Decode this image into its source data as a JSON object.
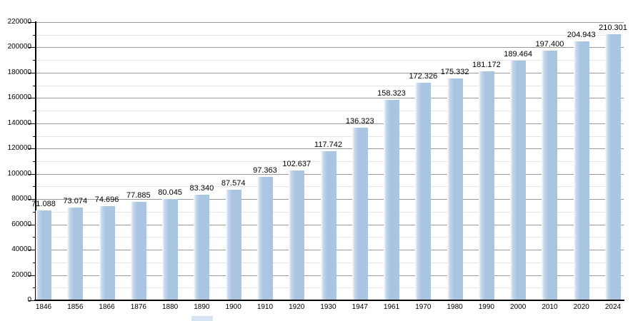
{
  "chart_data": {
    "type": "bar",
    "title": "",
    "xlabel": "",
    "ylabel": "",
    "categories": [
      "1846",
      "1856",
      "1866",
      "1876",
      "1880",
      "1890",
      "1900",
      "1910",
      "1920",
      "1930",
      "1947",
      "1961",
      "1970",
      "1980",
      "1990",
      "2000",
      "2010",
      "2020",
      "2024"
    ],
    "values": [
      71088,
      73074,
      74696,
      77885,
      80045,
      83340,
      87574,
      97363,
      102637,
      117742,
      136323,
      158323,
      172326,
      175332,
      181172,
      189464,
      197400,
      204943,
      210301
    ],
    "value_labels": [
      "71.088",
      "73.074",
      "74.696",
      "77.885",
      "80.045",
      "83.340",
      "87.574",
      "97.363",
      "102.637",
      "117.742",
      "136.323",
      "158.323",
      "172.326",
      "175.332",
      "181.172",
      "189.464",
      "197.400",
      "204.943",
      "210.301"
    ],
    "ylim": [
      0,
      220000
    ],
    "y_major_step": 20000,
    "y_minor_step": 10000,
    "y_tick_labels": [
      "0",
      "20000",
      "40000",
      "60000",
      "80000",
      "100000",
      "120000",
      "140000",
      "160000",
      "180000",
      "200000",
      "220000"
    ],
    "grid": "major+minor horizontal",
    "legend": "none",
    "colors": {
      "bar": "#a9c5e2",
      "bar_left_edge": "#ffffff",
      "grid_major": "#9a9a9a",
      "grid_minor": "#e4e4e4",
      "axis": "#000000",
      "text": "#000000",
      "background": "#ffffff",
      "bottom_fragment": "#d6e3f1"
    }
  }
}
